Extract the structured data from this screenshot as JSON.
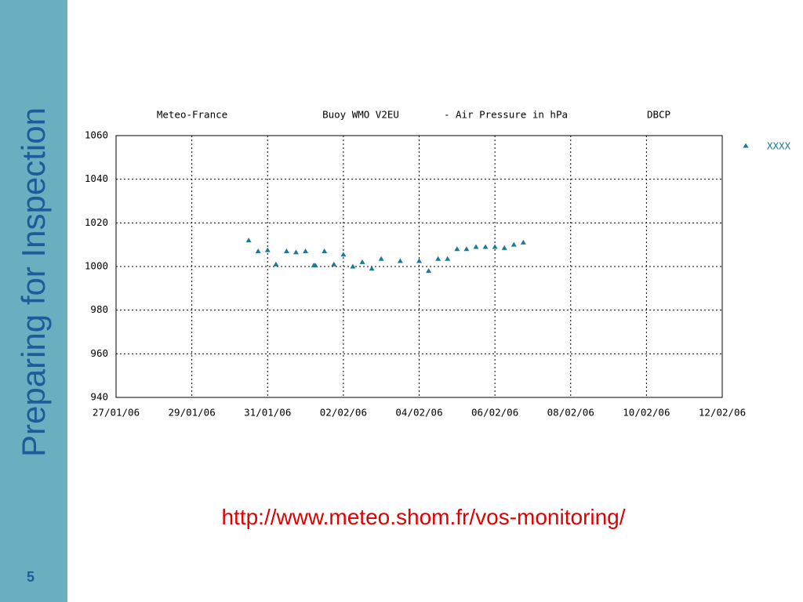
{
  "sidebar_title": "Preparing for Inspection",
  "page_number": "5",
  "url": "http://www.meteo.shom.fr/vos-monitoring/",
  "chart_data": {
    "type": "scatter",
    "title_parts": [
      "Meteo-France",
      "Buoy WMO V2EU",
      "- Air Pressure in hPa",
      "DBCP"
    ],
    "xlim": [
      0,
      16
    ],
    "ylim": [
      940,
      1060
    ],
    "xticks": [
      {
        "value": 0,
        "label": "27/01/06"
      },
      {
        "value": 2,
        "label": "29/01/06"
      },
      {
        "value": 4,
        "label": "31/01/06"
      },
      {
        "value": 6,
        "label": "02/02/06"
      },
      {
        "value": 8,
        "label": "04/02/06"
      },
      {
        "value": 10,
        "label": "06/02/06"
      },
      {
        "value": 12,
        "label": "08/02/06"
      },
      {
        "value": 14,
        "label": "10/02/06"
      },
      {
        "value": 16,
        "label": "12/02/06"
      }
    ],
    "yticks": [
      940,
      960,
      980,
      1000,
      1020,
      1040,
      1060
    ],
    "grid": true,
    "series": [
      {
        "name": "XXXX",
        "color": "#1a7a9a",
        "x": [
          3.5,
          3.75,
          4.0,
          4.22,
          4.5,
          4.75,
          5.0,
          5.22,
          5.26,
          5.5,
          5.75,
          6.0,
          6.25,
          6.5,
          6.75,
          7.0,
          7.5,
          8.0,
          8.25,
          8.5,
          8.75,
          9.0,
          9.25,
          9.5,
          9.75,
          10.0,
          10.25,
          10.5,
          10.75
        ],
        "values": [
          1012,
          1007,
          1007.5,
          1001,
          1007,
          1006.5,
          1007,
          1000.5,
          1000.5,
          1007,
          1001,
          1005.5,
          1000,
          1002,
          999,
          1003.5,
          1002.5,
          1002.5,
          998,
          1003.5,
          1003.5,
          1008,
          1008,
          1009,
          1009,
          1009,
          1008.5,
          1010,
          1011
        ]
      }
    ]
  }
}
